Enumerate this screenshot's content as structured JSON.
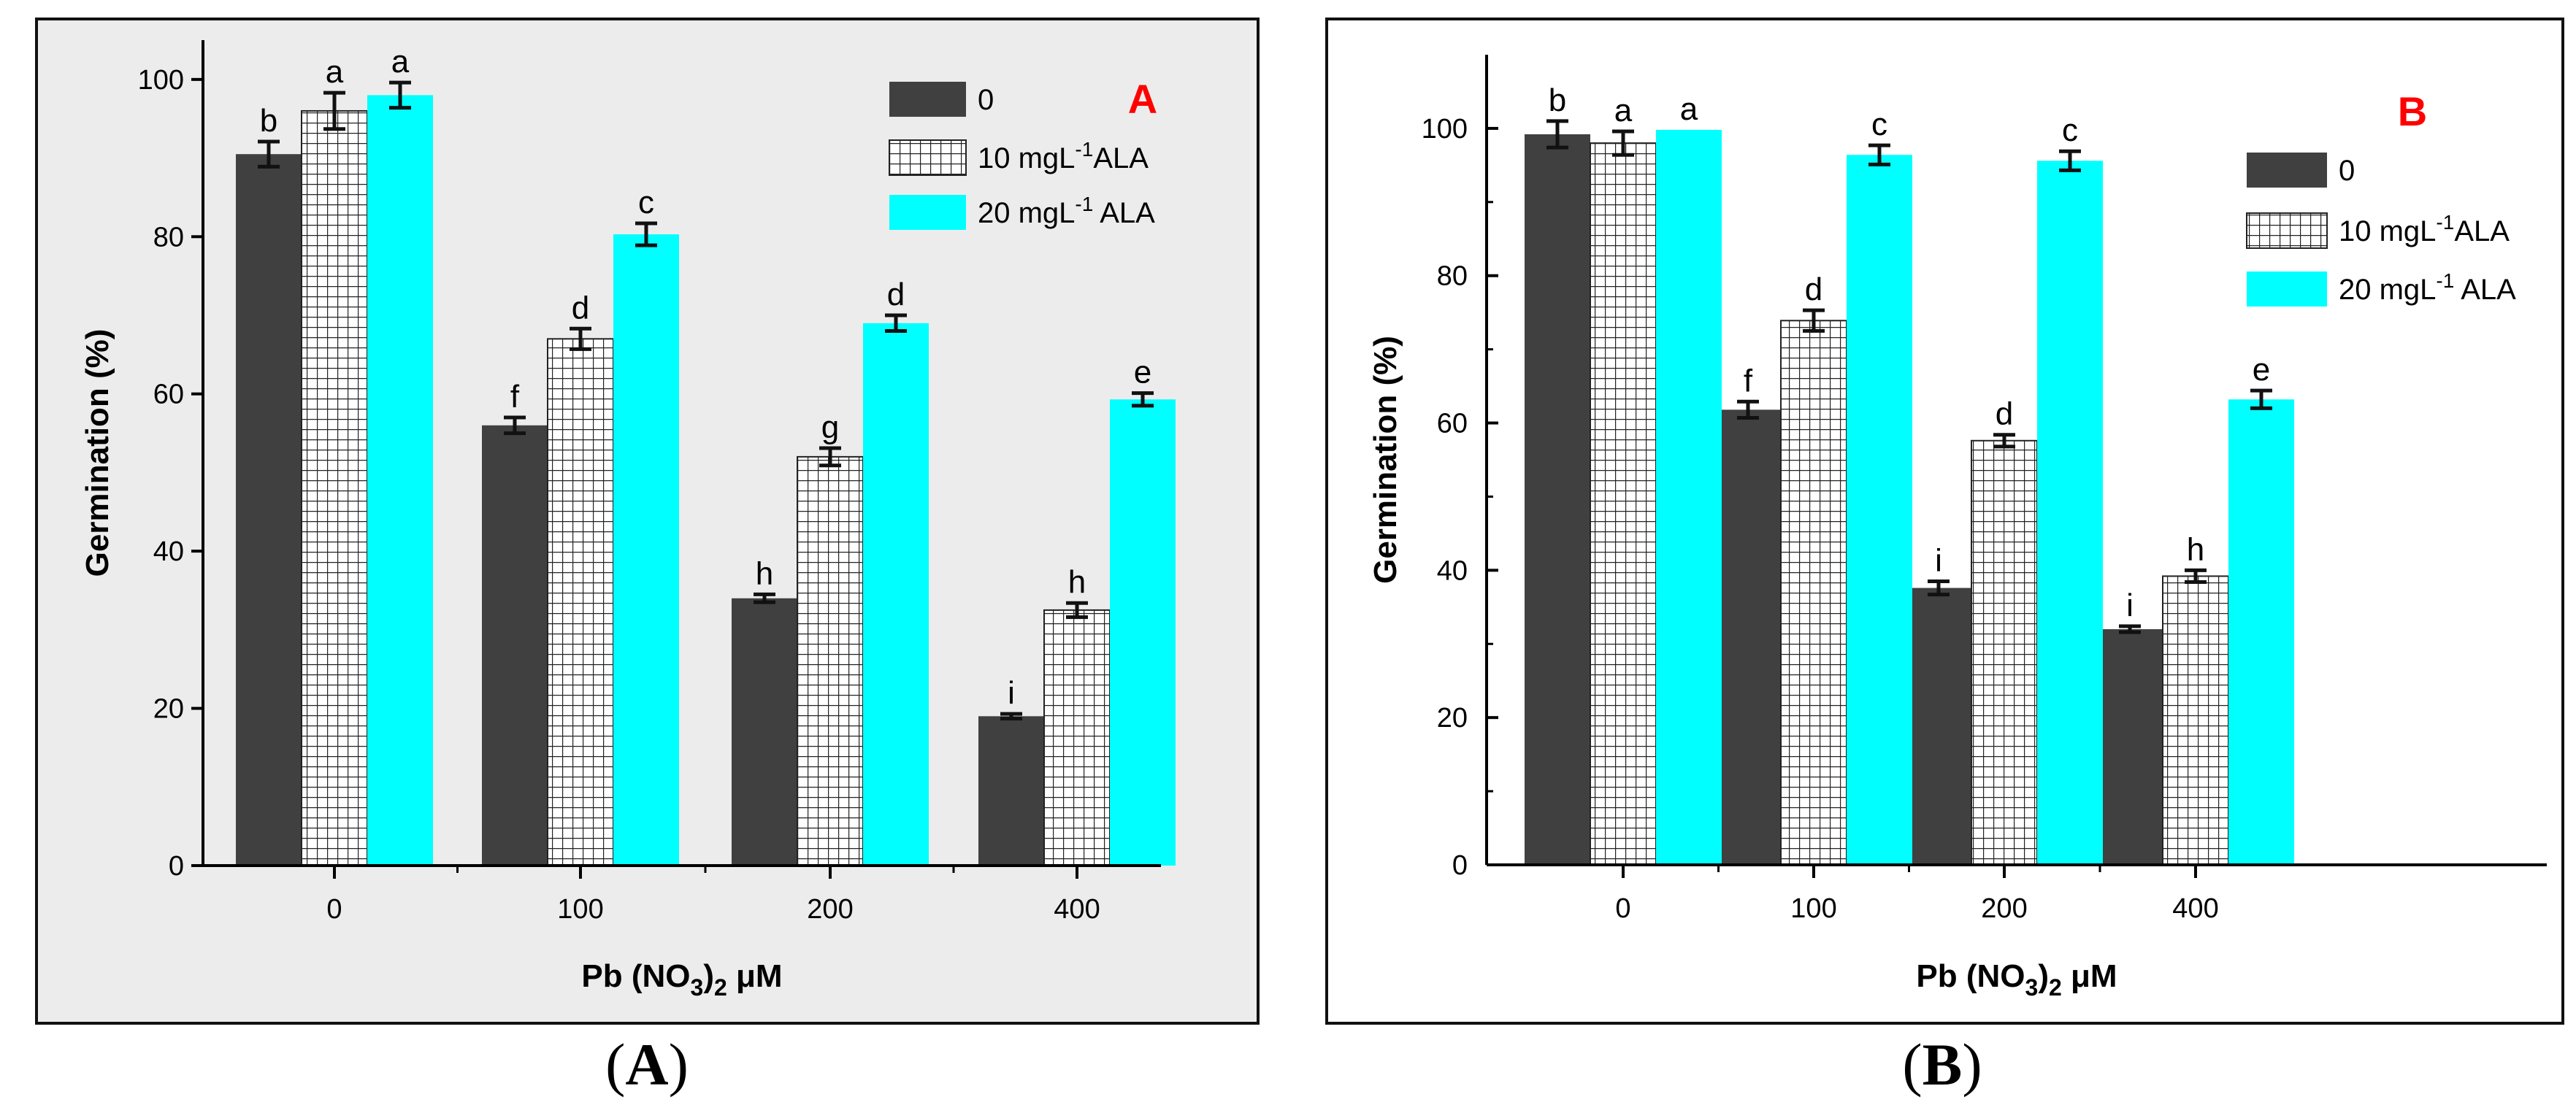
{
  "chart_data": [
    {
      "type": "bar",
      "panel_label": "A",
      "caption_letter": "A",
      "title": "",
      "xlabel": "Pb (NO",
      "xlabel_sub": "3",
      "xlabel_tail": ")",
      "xlabel_sub2": "2",
      "xlabel_unit": " μM",
      "ylabel": "Germination (%)",
      "ylim": [
        0,
        105
      ],
      "yticks": [
        0,
        20,
        40,
        60,
        80,
        100
      ],
      "categories": [
        "0",
        "100",
        "200",
        "400"
      ],
      "legend_position": "top-right",
      "background": "#ececec",
      "series": [
        {
          "name": "0",
          "legend_label": "0",
          "fill": "#404040",
          "pattern": "solid",
          "values": [
            90.5,
            56,
            34,
            19
          ],
          "errors": [
            1.6,
            1.0,
            0.5,
            0.3
          ],
          "letters": [
            "b",
            "f",
            "h",
            "i"
          ]
        },
        {
          "name": "10 mgL-1ALA",
          "legend_label": "10 mgL",
          "legend_sup": "-1",
          "legend_tail": "ALA",
          "fill": "#ffffff",
          "pattern": "grid",
          "values": [
            96,
            67,
            52,
            32.5
          ],
          "errors": [
            2.3,
            1.3,
            1.1,
            0.9
          ],
          "letters": [
            "a",
            "d",
            "g",
            "h"
          ]
        },
        {
          "name": "20 mgL-1 ALA",
          "legend_label": "20 mgL",
          "legend_sup": "-1",
          "legend_tail": " ALA",
          "fill": "#00ffff",
          "pattern": "solid",
          "values": [
            98,
            80.3,
            69,
            59.3
          ],
          "errors": [
            1.6,
            1.4,
            1.0,
            0.8
          ],
          "letters": [
            "a",
            "c",
            "d",
            "e"
          ]
        }
      ]
    },
    {
      "type": "bar",
      "panel_label": "B",
      "caption_letter": "B",
      "title": "",
      "xlabel": "Pb (NO",
      "xlabel_sub": "3",
      "xlabel_tail": ")",
      "xlabel_sub2": "2",
      "xlabel_unit": " μM",
      "ylabel": "Germination (%)",
      "ylim": [
        0,
        110
      ],
      "yticks": [
        0,
        20,
        40,
        60,
        80,
        100
      ],
      "categories": [
        "0",
        "100",
        "200",
        "400"
      ],
      "legend_position": "top-right",
      "background": "#ffffff",
      "series": [
        {
          "name": "0",
          "legend_label": "0",
          "fill": "#404040",
          "pattern": "solid",
          "values": [
            99.2,
            61.8,
            37.6,
            32
          ],
          "errors": [
            1.8,
            1.1,
            0.9,
            0.4
          ],
          "letters": [
            "b",
            "f",
            "i",
            "i"
          ]
        },
        {
          "name": "10 mgL-1ALA",
          "legend_label": "10 mgL",
          "legend_sup": "-1",
          "legend_tail": "ALA",
          "fill": "#ffffff",
          "pattern": "grid",
          "values": [
            98,
            73.9,
            57.6,
            39.2
          ],
          "errors": [
            1.6,
            1.4,
            0.8,
            0.8
          ],
          "letters": [
            "a",
            "d",
            "d",
            "h"
          ]
        },
        {
          "name": "20 mgL-1 ALA",
          "legend_label": "20 mgL",
          "legend_sup": "-1",
          "legend_tail": " ALA",
          "fill": "#00ffff",
          "pattern": "solid",
          "values": [
            99.8,
            96.4,
            95.6,
            63.2
          ],
          "errors": [
            0,
            1.3,
            1.3,
            1.2
          ],
          "letters": [
            "a",
            "c",
            "c",
            "e"
          ]
        }
      ]
    }
  ]
}
